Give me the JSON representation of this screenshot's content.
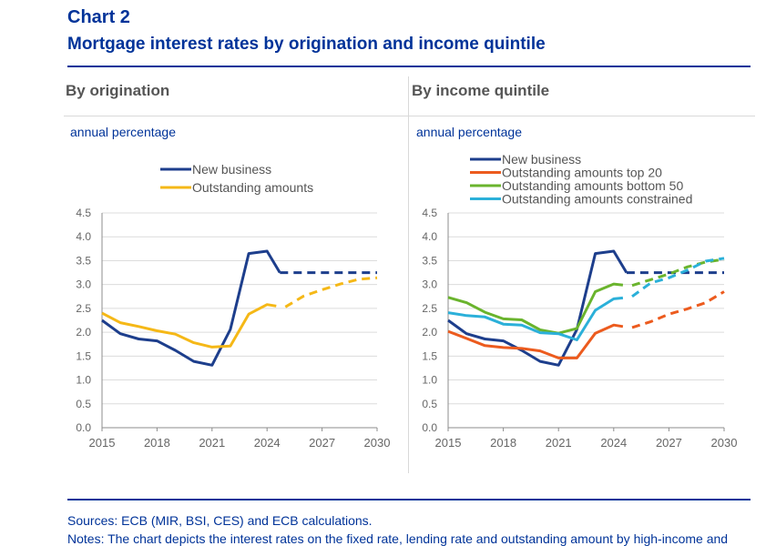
{
  "header": {
    "chart_number": "Chart 2",
    "title": "Mortgage interest rates by origination and income quintile"
  },
  "footer": {
    "sources": "Sources: ECB (MIR, BSI, CES) and ECB calculations.",
    "notes": "Notes: The chart depicts the interest rates on the fixed rate, lending rate and outstanding amount by high-income and"
  },
  "colors": {
    "new_business": "#1d3e8c",
    "outstanding": "#f5b817",
    "top20": "#ec5b1e",
    "bottom50": "#6ab42d",
    "constrained": "#2bb0d9"
  },
  "chart_data": [
    {
      "type": "line",
      "panel_title": "By origination",
      "unit_label": "annual percentage",
      "x_ticks": [
        2015,
        2018,
        2021,
        2024,
        2027,
        2030
      ],
      "y_ticks": [
        "0.0",
        "0.5",
        "1.0",
        "1.5",
        "2.0",
        "2.5",
        "3.0",
        "3.5",
        "4.0",
        "4.5"
      ],
      "xlim": [
        2015,
        2030
      ],
      "ylim": [
        0,
        4.5
      ],
      "legend_position": "top-center",
      "series": [
        {
          "name": "New business",
          "color": "#1d3e8c",
          "actual": [
            [
              2015,
              2.25
            ],
            [
              2016,
              1.97
            ],
            [
              2017,
              1.86
            ],
            [
              2018,
              1.82
            ],
            [
              2019,
              1.62
            ],
            [
              2020,
              1.39
            ],
            [
              2021,
              1.31
            ],
            [
              2022,
              2.06
            ],
            [
              2023,
              3.65
            ],
            [
              2024,
              3.7
            ],
            [
              2024.7,
              3.25
            ]
          ],
          "projection": [
            [
              2024.7,
              3.25
            ],
            [
              2030,
              3.25
            ]
          ]
        },
        {
          "name": "Outstanding amounts",
          "color": "#f5b817",
          "actual": [
            [
              2015,
              2.4
            ],
            [
              2016,
              2.2
            ],
            [
              2017,
              2.12
            ],
            [
              2018,
              2.03
            ],
            [
              2019,
              1.96
            ],
            [
              2020,
              1.78
            ],
            [
              2021,
              1.69
            ],
            [
              2022,
              1.71
            ],
            [
              2023,
              2.38
            ],
            [
              2024,
              2.58
            ],
            [
              2024.5,
              2.55
            ]
          ],
          "projection": [
            [
              2025,
              2.53
            ],
            [
              2026,
              2.76
            ],
            [
              2027,
              2.89
            ],
            [
              2028,
              3.01
            ],
            [
              2029,
              3.11
            ],
            [
              2030,
              3.14
            ]
          ]
        }
      ]
    },
    {
      "type": "line",
      "panel_title": "By income quintile",
      "unit_label": "annual percentage",
      "x_ticks": [
        2015,
        2018,
        2021,
        2024,
        2027,
        2030
      ],
      "y_ticks": [
        "0.0",
        "0.5",
        "1.0",
        "1.5",
        "2.0",
        "2.5",
        "3.0",
        "3.5",
        "4.0",
        "4.5"
      ],
      "xlim": [
        2015,
        2030
      ],
      "ylim": [
        0,
        4.5
      ],
      "legend_position": "top-left",
      "series": [
        {
          "name": "New business",
          "color": "#1d3e8c",
          "actual": [
            [
              2015,
              2.25
            ],
            [
              2016,
              1.97
            ],
            [
              2017,
              1.86
            ],
            [
              2018,
              1.82
            ],
            [
              2019,
              1.62
            ],
            [
              2020,
              1.39
            ],
            [
              2021,
              1.31
            ],
            [
              2022,
              2.06
            ],
            [
              2023,
              3.65
            ],
            [
              2024,
              3.7
            ],
            [
              2024.7,
              3.25
            ]
          ],
          "projection": [
            [
              2024.7,
              3.25
            ],
            [
              2030,
              3.25
            ]
          ]
        },
        {
          "name": "Outstanding amounts top 20",
          "color": "#ec5b1e",
          "actual": [
            [
              2015,
              2.02
            ],
            [
              2016,
              1.87
            ],
            [
              2017,
              1.72
            ],
            [
              2018,
              1.68
            ],
            [
              2019,
              1.66
            ],
            [
              2020,
              1.61
            ],
            [
              2021,
              1.46
            ],
            [
              2022,
              1.46
            ],
            [
              2023,
              1.98
            ],
            [
              2024,
              2.15
            ],
            [
              2024.5,
              2.12
            ]
          ],
          "projection": [
            [
              2025,
              2.1
            ],
            [
              2026,
              2.22
            ],
            [
              2027,
              2.38
            ],
            [
              2028,
              2.49
            ],
            [
              2029,
              2.62
            ],
            [
              2030,
              2.85
            ]
          ]
        },
        {
          "name": "Outstanding amounts bottom 50",
          "color": "#6ab42d",
          "actual": [
            [
              2015,
              2.73
            ],
            [
              2016,
              2.62
            ],
            [
              2017,
              2.42
            ],
            [
              2018,
              2.28
            ],
            [
              2019,
              2.26
            ],
            [
              2020,
              2.05
            ],
            [
              2021,
              1.98
            ],
            [
              2022,
              2.08
            ],
            [
              2023,
              2.85
            ],
            [
              2024,
              3.01
            ],
            [
              2024.5,
              2.99
            ]
          ],
          "projection": [
            [
              2025,
              2.98
            ],
            [
              2026,
              3.1
            ],
            [
              2027,
              3.22
            ],
            [
              2028,
              3.37
            ],
            [
              2029,
              3.47
            ],
            [
              2030,
              3.53
            ]
          ]
        },
        {
          "name": "Outstanding amounts constrained",
          "color": "#2bb0d9",
          "actual": [
            [
              2015,
              2.41
            ],
            [
              2016,
              2.35
            ],
            [
              2017,
              2.32
            ],
            [
              2018,
              2.17
            ],
            [
              2019,
              2.15
            ],
            [
              2020,
              1.99
            ],
            [
              2021,
              1.97
            ],
            [
              2022,
              1.84
            ],
            [
              2023,
              2.46
            ],
            [
              2024,
              2.7
            ],
            [
              2024.5,
              2.72
            ]
          ],
          "projection": [
            [
              2025,
              2.75
            ],
            [
              2026,
              3.03
            ],
            [
              2027,
              3.14
            ],
            [
              2028,
              3.3
            ],
            [
              2029,
              3.49
            ],
            [
              2030,
              3.55
            ]
          ]
        }
      ]
    }
  ]
}
